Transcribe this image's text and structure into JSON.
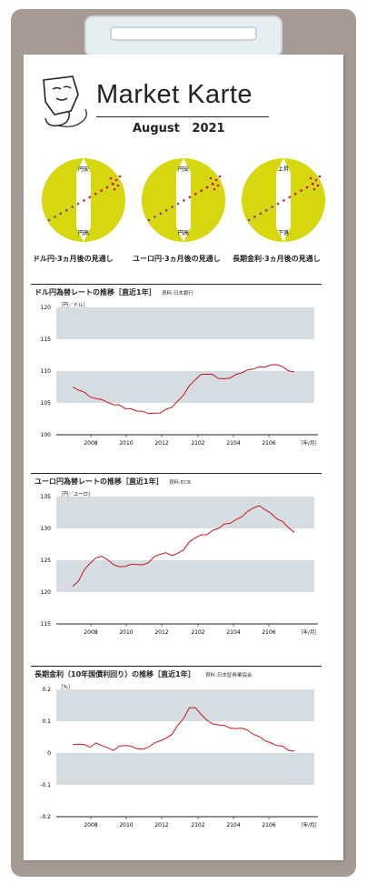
{
  "header": {
    "title": "Market Karte",
    "subtitle": "August   2021"
  },
  "colors": {
    "gauge": "#d6d70f",
    "band": "#d6dde2",
    "line": "#c8161d",
    "dots": "#c2185b"
  },
  "gauges": [
    {
      "top": "円安",
      "bottom": "円高",
      "label": "ドル円·3ヵ月後の見通し"
    },
    {
      "top": "円安",
      "bottom": "円高",
      "label": "ユーロ円·3ヵ月後の見通し"
    },
    {
      "top": "上昇",
      "bottom": "下落",
      "label": "長期金利·3ヵ月後の見通し"
    }
  ],
  "panels": [
    {
      "title": "ドル円為替レートの推移［直近1年］",
      "source": "資料:日本銀行"
    },
    {
      "title": "ユーロ円為替レートの推移［直近1年］",
      "source": "資料:ECB"
    },
    {
      "title": "長期金利（10年国債利回り）の推移［直近1年］",
      "source": "資料:日本証券業協会"
    }
  ],
  "chart_data": [
    {
      "type": "line",
      "title": "ドル円為替レートの推移［直近1年］",
      "ylabel": "［円／ドル］",
      "xlabel": "［年/月］",
      "x_ticks": [
        "2008",
        "2010",
        "2012",
        "2102",
        "2104",
        "2106"
      ],
      "y_ticks": [
        "120",
        "115",
        "110",
        "105",
        "100"
      ],
      "ylim": [
        100,
        120
      ],
      "series": [
        {
          "values": [
            107.4,
            107.1,
            106.6,
            106.0,
            105.6,
            105.6,
            105.0,
            104.8,
            104.6,
            104.2,
            104.0,
            103.8,
            103.6,
            103.4,
            103.3,
            103.5,
            103.9,
            104.4,
            105.2,
            106.3,
            107.6,
            108.7,
            109.4,
            109.6,
            109.4,
            108.9,
            108.7,
            109.0,
            109.4,
            109.8,
            110.1,
            110.4,
            110.6,
            110.7,
            110.9,
            111.1,
            110.6,
            110.1,
            109.8
          ]
        }
      ]
    },
    {
      "type": "line",
      "title": "ユーロ円為替レートの推移［直近1年］",
      "ylabel": "［円／ユーロ］",
      "xlabel": "［年/月］",
      "x_ticks": [
        "2008",
        "2010",
        "2012",
        "2102",
        "2104",
        "2106"
      ],
      "y_ticks": [
        "135",
        "130",
        "125",
        "120",
        "115"
      ],
      "ylim": [
        115,
        135
      ],
      "series": [
        {
          "values": [
            120.8,
            121.8,
            123.4,
            124.6,
            125.3,
            125.7,
            125.0,
            124.4,
            123.9,
            124.1,
            124.3,
            124.4,
            124.2,
            124.7,
            125.5,
            126.0,
            126.1,
            125.8,
            126.0,
            126.7,
            127.8,
            128.6,
            128.9,
            129.1,
            129.6,
            130.1,
            130.6,
            130.9,
            131.3,
            131.9,
            132.6,
            133.3,
            133.5,
            133.0,
            132.3,
            131.6,
            131.0,
            130.2,
            129.3
          ]
        }
      ]
    },
    {
      "type": "line",
      "title": "長期金利（10年国債利回り）の推移［直近1年］",
      "ylabel": "［%］",
      "xlabel": "［年/月］",
      "x_ticks": [
        "2008",
        "2010",
        "2012",
        "2102",
        "2104",
        "2106"
      ],
      "y_ticks": [
        "0.2",
        "0.1",
        "0",
        "-0.1",
        "-0.2"
      ],
      "ylim": [
        -0.2,
        0.2
      ],
      "series": [
        {
          "values": [
            0.025,
            0.03,
            0.025,
            0.02,
            0.03,
            0.025,
            0.015,
            0.01,
            0.02,
            0.025,
            0.02,
            0.015,
            0.01,
            0.02,
            0.03,
            0.04,
            0.045,
            0.06,
            0.085,
            0.11,
            0.14,
            0.145,
            0.12,
            0.105,
            0.09,
            0.09,
            0.085,
            0.08,
            0.075,
            0.08,
            0.07,
            0.06,
            0.05,
            0.04,
            0.03,
            0.025,
            0.02,
            0.01,
            0.005
          ]
        }
      ]
    }
  ]
}
